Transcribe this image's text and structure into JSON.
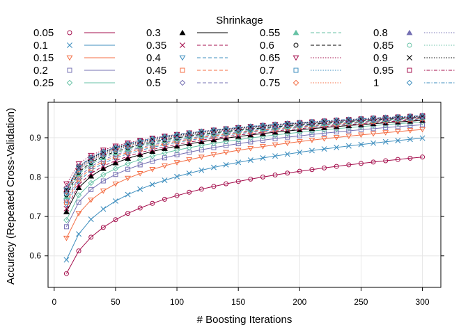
{
  "chart_data": {
    "type": "line",
    "xlabel": "# Boosting Iterations",
    "ylabel": "Accuracy (Repeated Cross-Validation)",
    "legend_title": "Shrinkage",
    "legend_position": "top",
    "grid": true,
    "xlim": [
      -5,
      315
    ],
    "ylim": [
      0.52,
      0.99
    ],
    "xticks": [
      0,
      50,
      100,
      150,
      200,
      250,
      300
    ],
    "yticks": [
      0.6,
      0.7,
      0.8,
      0.9
    ],
    "x": [
      10,
      20,
      30,
      40,
      50,
      60,
      70,
      80,
      90,
      100,
      110,
      120,
      130,
      140,
      150,
      160,
      170,
      180,
      190,
      200,
      210,
      220,
      230,
      240,
      250,
      260,
      270,
      280,
      290,
      300
    ],
    "series": [
      {
        "name": "0.05",
        "color": "#a50f4d",
        "marker": "circle",
        "dash": "solid",
        "start": 0.555,
        "end": 0.851,
        "k": 0.09
      },
      {
        "name": "0.1",
        "color": "#3f8fbf",
        "marker": "x",
        "dash": "solid",
        "start": 0.59,
        "end": 0.899,
        "k": 0.11
      },
      {
        "name": "0.15",
        "color": "#f46d43",
        "marker": "triangle-down",
        "dash": "solid",
        "start": 0.645,
        "end": 0.921,
        "k": 0.13
      },
      {
        "name": "0.2",
        "color": "#7570b3",
        "marker": "square",
        "dash": "solid",
        "start": 0.674,
        "end": 0.933,
        "k": 0.15
      },
      {
        "name": "0.25",
        "color": "#66c2a5",
        "marker": "diamond",
        "dash": "solid",
        "start": 0.691,
        "end": 0.94,
        "k": 0.17
      },
      {
        "name": "0.3",
        "color": "#000000",
        "marker": "triangle-filled",
        "dash": "solid",
        "start": 0.712,
        "end": 0.944,
        "k": 0.19
      },
      {
        "name": "0.35",
        "color": "#a50f4d",
        "marker": "x",
        "dash": "dashed",
        "start": 0.72,
        "end": 0.946,
        "k": 0.2
      },
      {
        "name": "0.4",
        "color": "#3f8fbf",
        "marker": "triangle-down",
        "dash": "dashed",
        "start": 0.73,
        "end": 0.948,
        "k": 0.21
      },
      {
        "name": "0.45",
        "color": "#f46d43",
        "marker": "square",
        "dash": "dashed",
        "start": 0.736,
        "end": 0.949,
        "k": 0.22
      },
      {
        "name": "0.5",
        "color": "#7570b3",
        "marker": "diamond",
        "dash": "dashed",
        "start": 0.742,
        "end": 0.95,
        "k": 0.23
      },
      {
        "name": "0.55",
        "color": "#66c2a5",
        "marker": "triangle-filled",
        "dash": "dashed",
        "start": 0.75,
        "end": 0.951,
        "k": 0.24
      },
      {
        "name": "0.6",
        "color": "#000000",
        "marker": "circle",
        "dash": "dashed",
        "start": 0.755,
        "end": 0.952,
        "k": 0.25
      },
      {
        "name": "0.65",
        "color": "#a50f4d",
        "marker": "triangle-down",
        "dash": "dotted",
        "start": 0.783,
        "end": 0.953,
        "k": 0.27
      },
      {
        "name": "0.7",
        "color": "#3f8fbf",
        "marker": "square",
        "dash": "dotted",
        "start": 0.76,
        "end": 0.953,
        "k": 0.26
      },
      {
        "name": "0.75",
        "color": "#f46d43",
        "marker": "diamond",
        "dash": "dotted",
        "start": 0.763,
        "end": 0.954,
        "k": 0.26
      },
      {
        "name": "0.8",
        "color": "#7570b3",
        "marker": "triangle-filled",
        "dash": "dotted",
        "start": 0.765,
        "end": 0.954,
        "k": 0.27
      },
      {
        "name": "0.85",
        "color": "#66c2a5",
        "marker": "circle",
        "dash": "dotted",
        "start": 0.767,
        "end": 0.955,
        "k": 0.27
      },
      {
        "name": "0.9",
        "color": "#000000",
        "marker": "x",
        "dash": "dotted",
        "start": 0.768,
        "end": 0.955,
        "k": 0.28
      },
      {
        "name": "0.95",
        "color": "#a50f4d",
        "marker": "square",
        "dash": "dotdash",
        "start": 0.77,
        "end": 0.956,
        "k": 0.28
      },
      {
        "name": "1",
        "color": "#3f8fbf",
        "marker": "diamond",
        "dash": "dotdash",
        "start": 0.771,
        "end": 0.956,
        "k": 0.28
      }
    ]
  }
}
